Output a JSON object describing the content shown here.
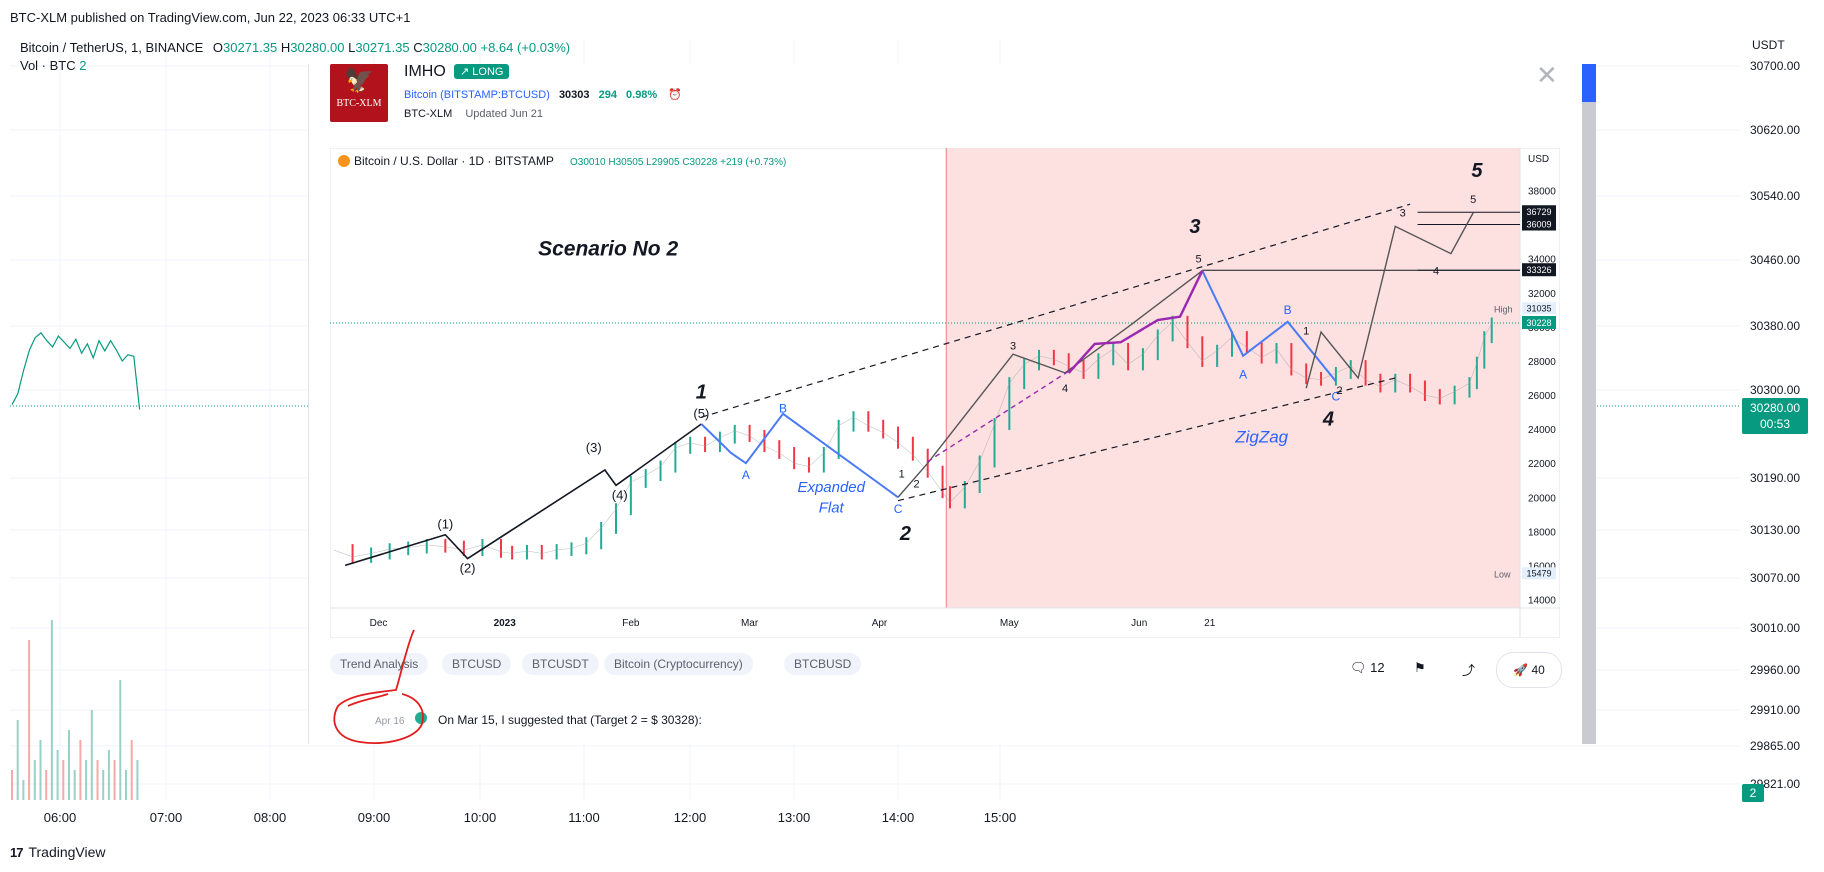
{
  "header": {
    "published": "BTC-XLM published on TradingView.com, Jun 22, 2023 06:33 UTC+1"
  },
  "outer_chart": {
    "title": "Bitcoin / TetherUS, 1, BINANCE",
    "o_label": "O",
    "o": "30271.35",
    "h_label": "H",
    "h": "30280.00",
    "l_label": "L",
    "l": "30271.35",
    "c_label": "C",
    "c": "30280.00",
    "change": "+8.64 (+0.03%)",
    "vol_label": "Vol · BTC",
    "vol_value": "2",
    "currency": "USDT",
    "price_ticks": [
      "30700.00",
      "30620.00",
      "30540.00",
      "30460.00",
      "30380.00",
      "30300.00",
      "30190.00",
      "30130.00",
      "30070.00",
      "30010.00",
      "29960.00",
      "29910.00",
      "29865.00",
      "29821.00"
    ],
    "time_ticks": [
      "06:00",
      "07:00",
      "08:00",
      "09:00",
      "10:00",
      "11:00",
      "12:00",
      "13:00",
      "14:00",
      "15:00"
    ],
    "last_price": "30280.00",
    "countdown": "00:53",
    "vol_tag": "2",
    "line_color": "#089981"
  },
  "idea": {
    "author_logo_text": "BTC-XLM",
    "title": "IMHO",
    "badge": "↗ LONG",
    "symbol": "Bitcoin (BITSTAMP:BTCUSD)",
    "price": "30303",
    "change": "294",
    "change_pct": "0.98%",
    "author": "BTC-XLM",
    "updated": "Updated Jun 21",
    "tags": [
      "Trend Analysis",
      "BTCUSD",
      "BTCUSDT",
      "Bitcoin (Cryptocurrency)",
      "BTCBUSD"
    ],
    "comments": "12",
    "boosts": "40",
    "update_date": "Apr 16",
    "update_text": "On Mar 15, I suggested that (Target 2 = $ 30328):"
  },
  "chart_data": [
    {
      "type": "line",
      "title": "Bitcoin / U.S. Dollar · 1D · BITSTAMP",
      "ohlc": {
        "o_label": "O",
        "o": "30010",
        "h_label": "H",
        "h": "30505",
        "l_label": "L",
        "l": "29905",
        "c_label": "C",
        "c": "30228",
        "change": "+219 (+0.73%)"
      },
      "currency": "USD",
      "x_ticks": [
        "Dec",
        "2023",
        "Feb",
        "Mar",
        "Apr",
        "May",
        "Jun",
        "21"
      ],
      "y_ticks": [
        "38000",
        "36000",
        "34000",
        "32000",
        "30000",
        "28000",
        "26000",
        "24000",
        "22000",
        "20000",
        "18000",
        "16000",
        "14000"
      ],
      "ylim": [
        13500,
        40500
      ],
      "price_series": [
        [
          0,
          16900
        ],
        [
          5,
          16500
        ],
        [
          10,
          16700
        ],
        [
          15,
          16950
        ],
        [
          20,
          17050
        ],
        [
          25,
          17200
        ],
        [
          30,
          17100
        ],
        [
          35,
          16900
        ],
        [
          40,
          17200
        ],
        [
          45,
          16800
        ],
        [
          48,
          16700
        ],
        [
          52,
          16850
        ],
        [
          56,
          16700
        ],
        [
          60,
          16900
        ],
        [
          64,
          17000
        ],
        [
          68,
          17300
        ],
        [
          72,
          18200
        ],
        [
          76,
          19300
        ],
        [
          80,
          20900
        ],
        [
          84,
          21300
        ],
        [
          88,
          21800
        ],
        [
          92,
          22900
        ],
        [
          96,
          23200
        ],
        [
          100,
          23000
        ],
        [
          104,
          23500
        ],
        [
          108,
          23900
        ],
        [
          112,
          23600
        ],
        [
          116,
          23000
        ],
        [
          120,
          22600
        ],
        [
          124,
          22000
        ],
        [
          128,
          21800
        ],
        [
          132,
          22600
        ],
        [
          136,
          24200
        ],
        [
          140,
          24700
        ],
        [
          144,
          24200
        ],
        [
          148,
          23800
        ],
        [
          152,
          23200
        ],
        [
          156,
          22500
        ],
        [
          160,
          21500
        ],
        [
          164,
          20300
        ],
        [
          166,
          19700
        ],
        [
          170,
          20600
        ],
        [
          174,
          22100
        ],
        [
          178,
          24300
        ],
        [
          182,
          26700
        ],
        [
          186,
          27800
        ],
        [
          190,
          28300
        ],
        [
          194,
          28100
        ],
        [
          198,
          27700
        ],
        [
          202,
          27300
        ],
        [
          206,
          28100
        ],
        [
          210,
          28700
        ],
        [
          214,
          27800
        ],
        [
          218,
          28400
        ],
        [
          222,
          29500
        ],
        [
          226,
          30300
        ],
        [
          230,
          29100
        ],
        [
          234,
          28000
        ],
        [
          238,
          28600
        ],
        [
          242,
          29400
        ],
        [
          246,
          28800
        ],
        [
          250,
          28200
        ],
        [
          254,
          28700
        ],
        [
          258,
          27500
        ],
        [
          262,
          27000
        ],
        [
          266,
          26900
        ],
        [
          270,
          27300
        ],
        [
          274,
          27700
        ],
        [
          278,
          26900
        ],
        [
          282,
          26500
        ],
        [
          286,
          26900
        ],
        [
          290,
          26500
        ],
        [
          294,
          26000
        ],
        [
          298,
          25800
        ],
        [
          302,
          26200
        ],
        [
          306,
          26700
        ],
        [
          308,
          27900
        ],
        [
          310,
          29400
        ],
        [
          312,
          30200
        ]
      ],
      "range_lines": [
        {
          "value": 36729,
          "label": "36729"
        },
        {
          "value": 36009,
          "label": "36009"
        },
        {
          "value": 33326,
          "label": "33326"
        }
      ],
      "current_price": {
        "value": 30228,
        "label": "30228"
      },
      "high": {
        "label": "High",
        "value": "31035"
      },
      "low": {
        "label": "Low",
        "value": "15479"
      },
      "shaded_region_start": 165,
      "wave_main": [
        [
          3,
          16000
        ],
        [
          30,
          17800
        ],
        [
          36,
          16400
        ],
        [
          73,
          21600
        ],
        [
          76,
          20700
        ],
        [
          99,
          24300
        ]
      ],
      "wave_main_labels": [
        {
          "x": 30,
          "y": 17800,
          "text": "(1)",
          "pos": "above"
        },
        {
          "x": 36,
          "y": 16400,
          "text": "(2)",
          "pos": "below"
        },
        {
          "x": 70,
          "y": 22300,
          "text": "(3)",
          "pos": "above"
        },
        {
          "x": 77,
          "y": 20700,
          "text": "(4)",
          "pos": "below"
        },
        {
          "x": 99,
          "y": 24300,
          "text": "(5)",
          "pos": "above"
        }
      ],
      "wave_abc": [
        [
          99,
          24300
        ],
        [
          107,
          22600
        ],
        [
          111,
          22000
        ],
        [
          121,
          24900
        ],
        [
          152,
          20000
        ]
      ],
      "wave_abc_labels": [
        {
          "x": 111,
          "y": 21300,
          "text": "A",
          "color": "#2962ff"
        },
        {
          "x": 121,
          "y": 25200,
          "text": "B",
          "color": "#2962ff"
        },
        {
          "x": 152,
          "y": 19300,
          "text": "C",
          "color": "#2962ff"
        }
      ],
      "wave_abc_caption": [
        "Expanded",
        "Flat"
      ],
      "wave_sub": [
        [
          152,
          20000
        ],
        [
          160,
          22000
        ],
        [
          183,
          28400
        ],
        [
          197,
          27300
        ],
        [
          214,
          30000
        ],
        [
          234,
          33300
        ]
      ],
      "wave_sub_labels": [
        {
          "x": 153,
          "y": 21400,
          "text": "1"
        },
        {
          "x": 157,
          "y": 20800,
          "text": "2"
        },
        {
          "x": 183,
          "y": 28900,
          "text": "3"
        },
        {
          "x": 197,
          "y": 26400,
          "text": "4"
        },
        {
          "x": 233,
          "y": 34000,
          "text": "5"
        }
      ],
      "wave_zigzag": [
        [
          234,
          33300
        ],
        [
          245,
          28300
        ],
        [
          257,
          30300
        ],
        [
          270,
          26800
        ]
      ],
      "wave_zigzag_labels": [
        {
          "x": 245,
          "y": 27200,
          "text": "A",
          "color": "#2962ff"
        },
        {
          "x": 257,
          "y": 31000,
          "text": "B",
          "color": "#2962ff"
        },
        {
          "x": 270,
          "y": 25900,
          "text": "C",
          "color": "#2962ff"
        }
      ],
      "wave_zigzag_caption": "ZigZag",
      "wave_purple": [
        [
          198,
          27300
        ],
        [
          205,
          29000
        ],
        [
          212,
          29100
        ],
        [
          222,
          30400
        ],
        [
          228,
          30600
        ],
        [
          234,
          33300
        ]
      ],
      "wave_purple_dashed": [
        [
          160,
          22100
        ],
        [
          198,
          27400
        ]
      ],
      "wave_projection": [
        [
          262,
          26400
        ],
        [
          266,
          29700
        ],
        [
          276,
          27000
        ],
        [
          286,
          35900
        ],
        [
          301,
          34300
        ],
        [
          307,
          36700
        ]
      ],
      "wave_projection_labels": [
        {
          "x": 262,
          "y": 29800,
          "text": "1"
        },
        {
          "x": 271,
          "y": 26300,
          "text": "2"
        },
        {
          "x": 288,
          "y": 36700,
          "text": "3"
        },
        {
          "x": 297,
          "y": 33300,
          "text": "4"
        },
        {
          "x": 307,
          "y": 37500,
          "text": "5"
        }
      ],
      "channel_upper": [
        [
          99,
          24700
        ],
        [
          290,
          37200
        ]
      ],
      "channel_lower": [
        [
          152,
          19800
        ],
        [
          286,
          27000
        ]
      ],
      "degree_labels": [
        {
          "x": 99,
          "y": 25800,
          "text": "1"
        },
        {
          "x": 154,
          "y": 17500,
          "text": "2"
        },
        {
          "x": 232,
          "y": 35500,
          "text": "3"
        },
        {
          "x": 268,
          "y": 24200,
          "text": "4"
        },
        {
          "x": 308,
          "y": 38800,
          "text": "5"
        }
      ],
      "annotation_title": "Scenario No 2"
    },
    {
      "type": "line",
      "note": "outer 1-minute chart",
      "x": [
        0,
        2,
        4,
        6,
        8,
        10,
        12,
        14,
        16,
        18,
        20,
        22,
        24,
        26,
        28,
        30,
        32,
        34,
        36,
        38,
        40,
        42,
        44
      ],
      "values": [
        30286,
        30300,
        30330,
        30356,
        30372,
        30378,
        30368,
        30360,
        30374,
        30366,
        30358,
        30370,
        30352,
        30364,
        30346,
        30368,
        30355,
        30368,
        30356,
        30342,
        30350,
        30348,
        30280
      ],
      "ylim": [
        29800,
        30720
      ]
    }
  ]
}
